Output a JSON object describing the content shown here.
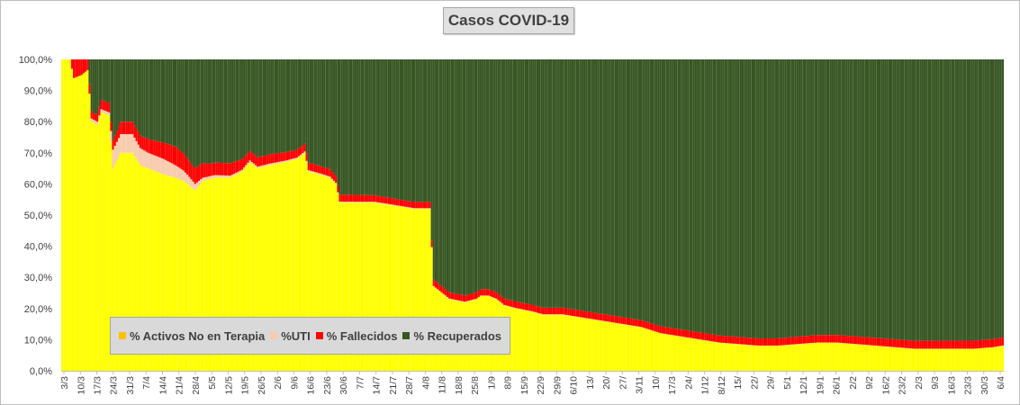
{
  "chart_data": {
    "type": "bar",
    "stacked": true,
    "percent_stacked": true,
    "title": "Casos  COVID-19",
    "xlabel": "",
    "ylabel": "",
    "ylim": [
      0,
      100
    ],
    "ytick_labels": [
      "0,0%",
      "10,0%",
      "20,0%",
      "30,0%",
      "40,0%",
      "50,0%",
      "60,0%",
      "70,0%",
      "80,0%",
      "90,0%",
      "100,0%"
    ],
    "x_tick_labels": [
      "3/3",
      "10/3",
      "17/3",
      "24/3",
      "31/3",
      "7/4",
      "14/4",
      "21/4",
      "28/4",
      "5/5",
      "12/5",
      "19/5",
      "26/5",
      "2/6",
      "9/6",
      "16/6",
      "23/6",
      "30/6",
      "7/7",
      "14/7",
      "21/7",
      "28/7",
      "4/8",
      "11/8",
      "18/8",
      "25/8",
      "1/9",
      "8/9",
      "15/9",
      "22/9",
      "29/9",
      "6/10",
      "13/",
      "20/",
      "27/",
      "3/11",
      "10/",
      "17/3",
      "24/",
      "1/12",
      "8/12",
      "15/",
      "22/",
      "29/",
      "5/1",
      "12/1",
      "19/1",
      "26/1",
      "2/2",
      "9/2",
      "16/2",
      "23/2",
      "2/3",
      "9/3",
      "16/3",
      "23/3",
      "30/3",
      "6/4"
    ],
    "legend_position": "bottom-left",
    "grid": false,
    "series": [
      {
        "name": "% Activos No en Terapia",
        "color": "#ffff00",
        "legend_color": "#ffc000",
        "anchors": [
          [
            0,
            100
          ],
          [
            4,
            100
          ],
          [
            6,
            94
          ],
          [
            10,
            95
          ],
          [
            11,
            97
          ],
          [
            13,
            98
          ],
          [
            15,
            80
          ],
          [
            18,
            79
          ],
          [
            20,
            83
          ],
          [
            24,
            82
          ],
          [
            26,
            65
          ],
          [
            30,
            70
          ],
          [
            36,
            70
          ],
          [
            40,
            66
          ],
          [
            44,
            65
          ],
          [
            52,
            63
          ],
          [
            58,
            62
          ],
          [
            62,
            61
          ],
          [
            64,
            60
          ],
          [
            68,
            58
          ],
          [
            72,
            61
          ],
          [
            78,
            62
          ],
          [
            86,
            62
          ],
          [
            92,
            64
          ],
          [
            96,
            67
          ],
          [
            100,
            65
          ],
          [
            106,
            66
          ],
          [
            114,
            67
          ],
          [
            120,
            68
          ],
          [
            124,
            70
          ],
          [
            126,
            64
          ],
          [
            132,
            63
          ],
          [
            137,
            62
          ],
          [
            140,
            60
          ],
          [
            142,
            54
          ],
          [
            150,
            54
          ],
          [
            160,
            54
          ],
          [
            170,
            53
          ],
          [
            180,
            52
          ],
          [
            188,
            52
          ],
          [
            190,
            27
          ],
          [
            194,
            25
          ],
          [
            198,
            23
          ],
          [
            206,
            22
          ],
          [
            212,
            23
          ],
          [
            214,
            24
          ],
          [
            218,
            24
          ],
          [
            222,
            23
          ],
          [
            226,
            21
          ],
          [
            232,
            20
          ],
          [
            240,
            19
          ],
          [
            246,
            18
          ],
          [
            256,
            18
          ],
          [
            266,
            17
          ],
          [
            276,
            16
          ],
          [
            286,
            15
          ],
          [
            296,
            14
          ],
          [
            306,
            12
          ],
          [
            316,
            11
          ],
          [
            326,
            10
          ],
          [
            336,
            9
          ],
          [
            346,
            8.5
          ],
          [
            356,
            8
          ],
          [
            366,
            8
          ],
          [
            376,
            8.5
          ],
          [
            386,
            9
          ],
          [
            396,
            9
          ],
          [
            406,
            8.5
          ],
          [
            416,
            8
          ],
          [
            426,
            7.5
          ],
          [
            436,
            7
          ],
          [
            446,
            7
          ],
          [
            456,
            7
          ],
          [
            466,
            7
          ],
          [
            476,
            7.5
          ],
          [
            481,
            8
          ]
        ]
      },
      {
        "name": "%UTI",
        "color": "#f8cbad",
        "legend_color": "#f8cbad",
        "anchors": [
          [
            0,
            0
          ],
          [
            14,
            0
          ],
          [
            15,
            1
          ],
          [
            24,
            1
          ],
          [
            26,
            6
          ],
          [
            30,
            6
          ],
          [
            36,
            6
          ],
          [
            44,
            5
          ],
          [
            52,
            5
          ],
          [
            58,
            4
          ],
          [
            64,
            3
          ],
          [
            68,
            2
          ],
          [
            72,
            1
          ],
          [
            80,
            0.8
          ],
          [
            90,
            0.6
          ],
          [
            110,
            0.5
          ],
          [
            130,
            0.4
          ],
          [
            150,
            0.3
          ],
          [
            200,
            0.2
          ],
          [
            300,
            0.1
          ],
          [
            481,
            0.1
          ]
        ]
      },
      {
        "name": "% Fallecidos",
        "color": "#ff0000",
        "legend_color": "#ff0000",
        "anchors": [
          [
            0,
            0
          ],
          [
            4,
            0
          ],
          [
            6,
            6
          ],
          [
            10,
            5
          ],
          [
            14,
            3
          ],
          [
            16,
            2
          ],
          [
            20,
            3
          ],
          [
            26,
            3
          ],
          [
            30,
            4
          ],
          [
            40,
            4
          ],
          [
            50,
            5
          ],
          [
            58,
            6
          ],
          [
            66,
            5
          ],
          [
            70,
            5
          ],
          [
            76,
            4
          ],
          [
            86,
            4
          ],
          [
            96,
            3
          ],
          [
            106,
            3
          ],
          [
            120,
            2.5
          ],
          [
            140,
            2.3
          ],
          [
            170,
            2
          ],
          [
            200,
            2
          ],
          [
            240,
            2.1
          ],
          [
            300,
            2.2
          ],
          [
            360,
            2.3
          ],
          [
            420,
            2.5
          ],
          [
            481,
            2.6
          ]
        ]
      },
      {
        "name": "% Recuperados",
        "color": "#375623",
        "legend_color": "#375623",
        "remainder": true
      }
    ],
    "bar_count": 482,
    "note": ""
  },
  "legend": {
    "items": [
      {
        "label": "% Activos No en Terapia",
        "color": "#ffc000"
      },
      {
        "label": "%UTI",
        "color": "#f8cbad"
      },
      {
        "label": "% Fallecidos",
        "color": "#ff0000"
      },
      {
        "label": "% Recuperados",
        "color": "#375623"
      }
    ]
  }
}
